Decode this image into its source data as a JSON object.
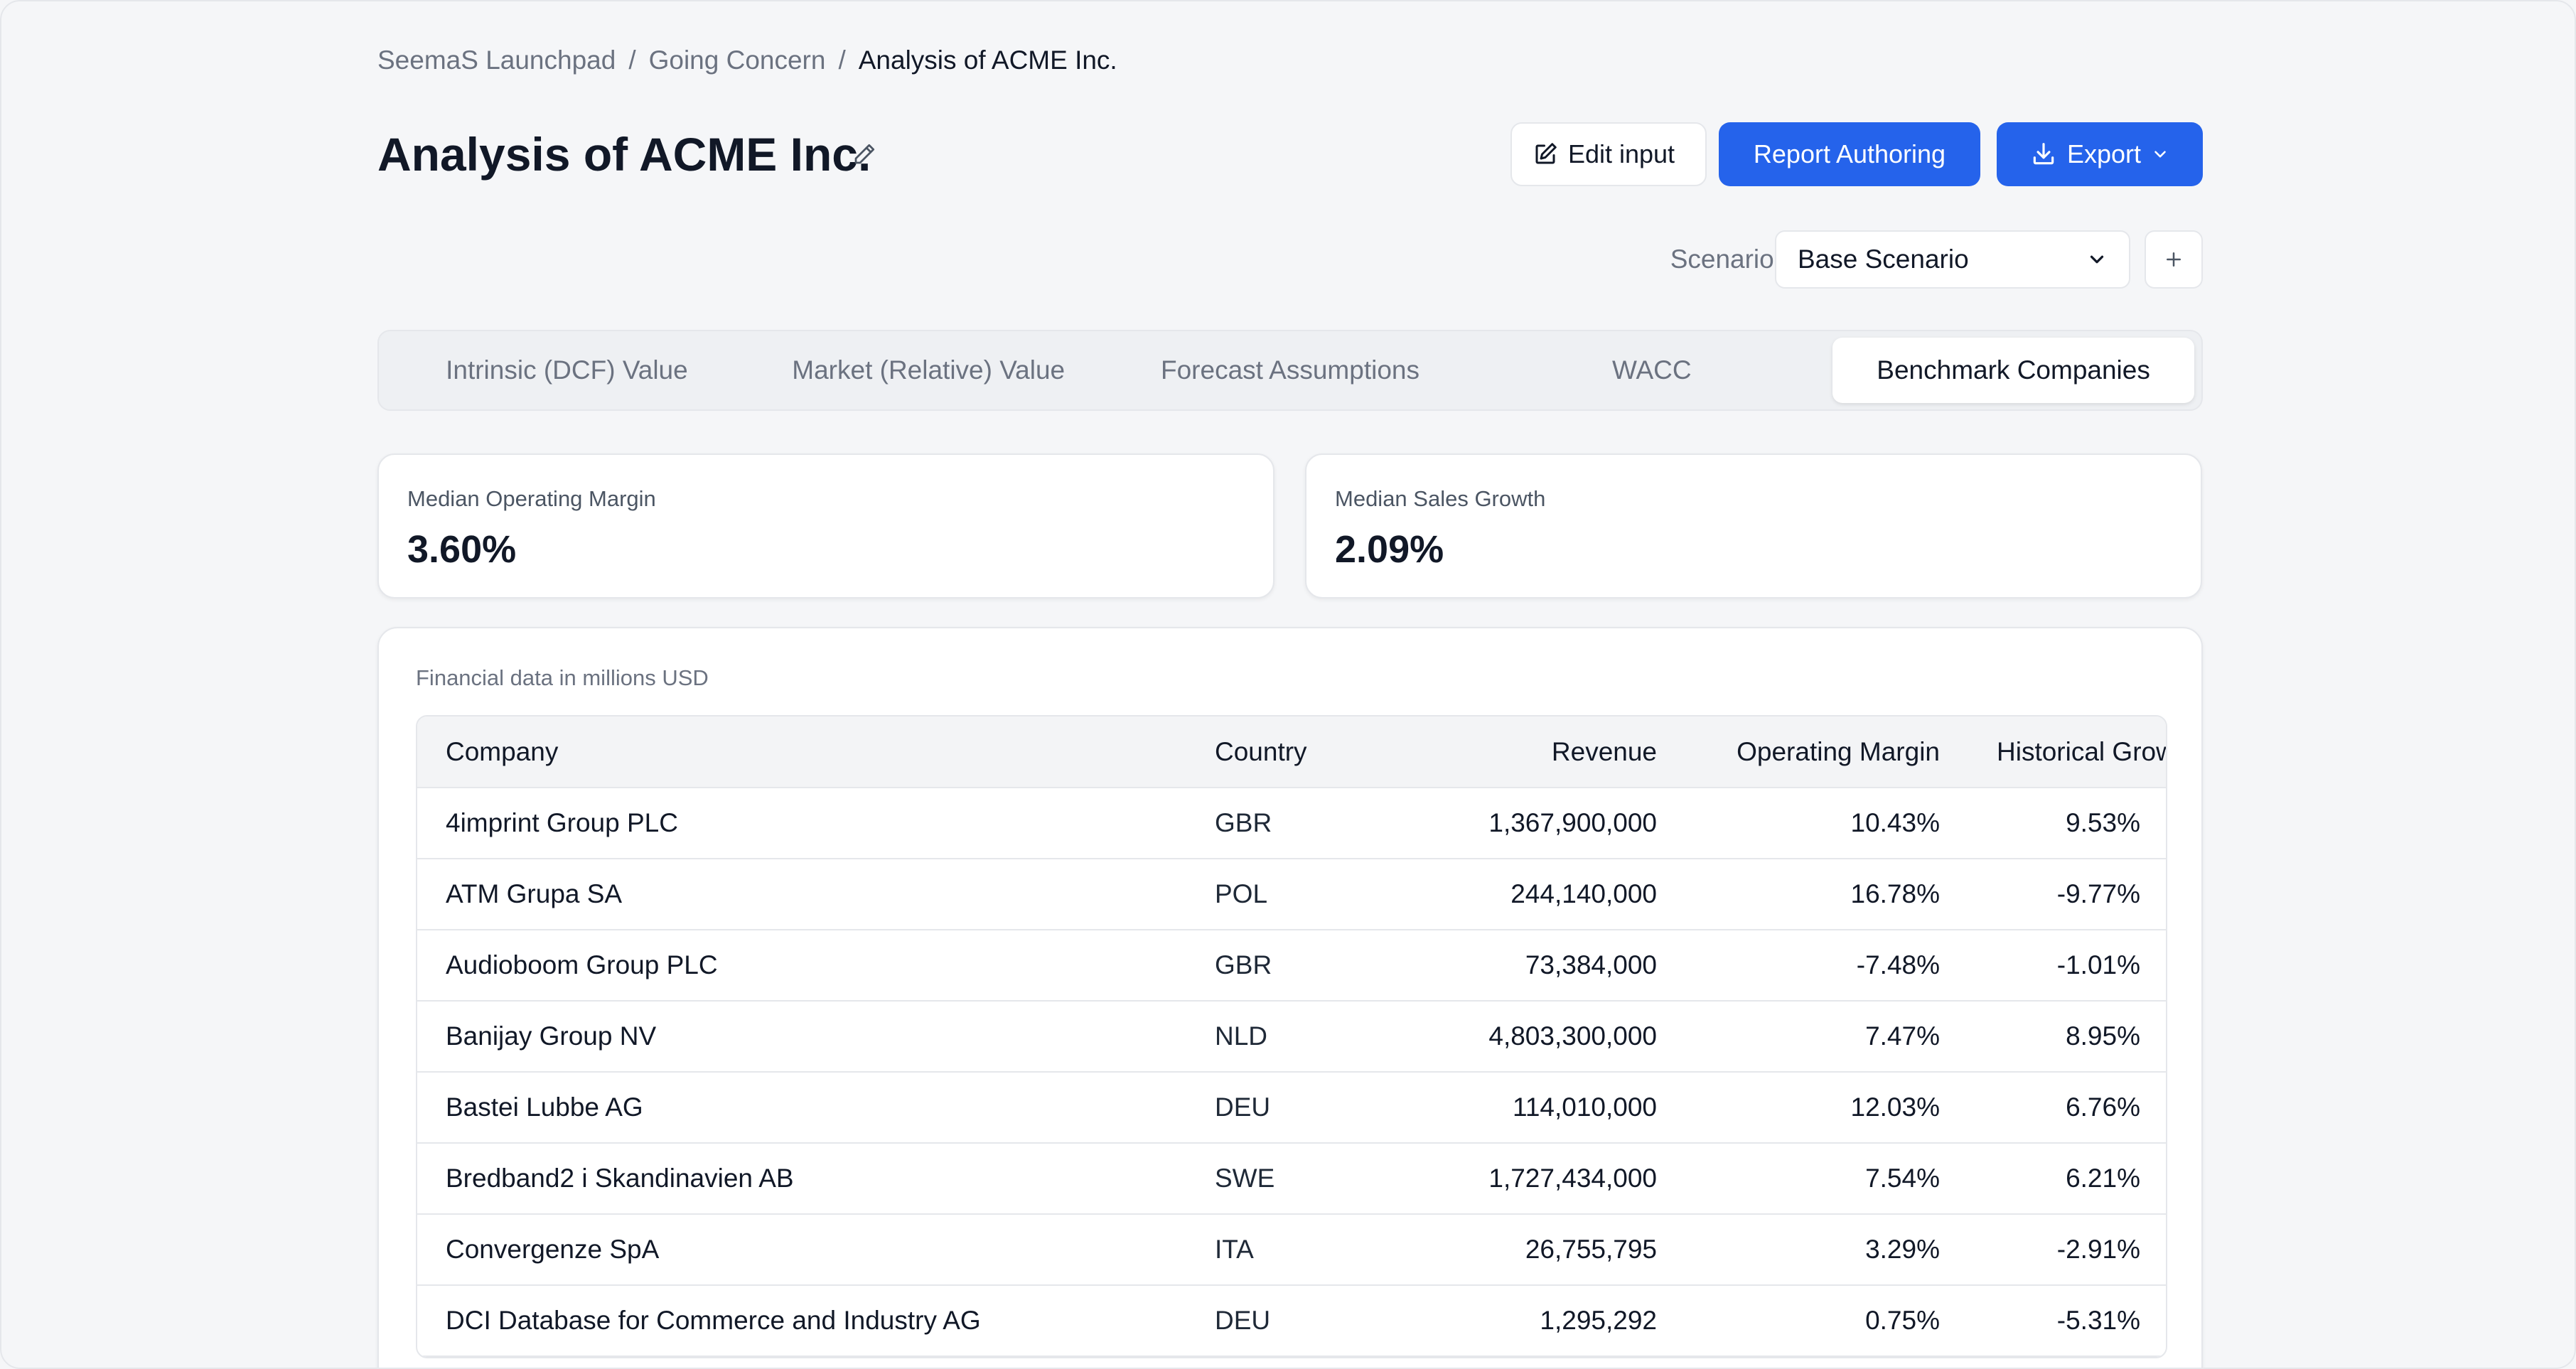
{
  "breadcrumb": {
    "items": [
      "SeemaS Launchpad",
      "Going Concern"
    ],
    "separator": "/",
    "current": "Analysis of ACME Inc."
  },
  "header": {
    "title": "Analysis of ACME Inc.",
    "edit_input_label": "Edit input",
    "report_authoring_label": "Report Authoring",
    "export_label": "Export"
  },
  "scenario": {
    "label": "Scenario:",
    "selected": "Base Scenario"
  },
  "tabs": [
    {
      "label": "Intrinsic (DCF) Value",
      "active": false
    },
    {
      "label": "Market (Relative) Value",
      "active": false
    },
    {
      "label": "Forecast Assumptions",
      "active": false
    },
    {
      "label": "WACC",
      "active": false
    },
    {
      "label": "Benchmark Companies",
      "active": true
    }
  ],
  "stats": {
    "median_operating_margin": {
      "label": "Median Operating Margin",
      "value": "3.60%"
    },
    "median_sales_growth": {
      "label": "Median Sales Growth",
      "value": "2.09%"
    }
  },
  "table": {
    "note": "Financial data in millions USD",
    "columns": [
      "Company",
      "Country",
      "Revenue",
      "Operating Margin",
      "Historical Growth"
    ],
    "rows": [
      {
        "company": "4imprint Group PLC",
        "country": "GBR",
        "revenue": "1,367,900,000",
        "margin": "10.43%",
        "growth": "9.53%"
      },
      {
        "company": "ATM Grupa SA",
        "country": "POL",
        "revenue": "244,140,000",
        "margin": "16.78%",
        "growth": "-9.77%"
      },
      {
        "company": "Audioboom Group PLC",
        "country": "GBR",
        "revenue": "73,384,000",
        "margin": "-7.48%",
        "growth": "-1.01%"
      },
      {
        "company": "Banijay Group NV",
        "country": "NLD",
        "revenue": "4,803,300,000",
        "margin": "7.47%",
        "growth": "8.95%"
      },
      {
        "company": "Bastei Lubbe AG",
        "country": "DEU",
        "revenue": "114,010,000",
        "margin": "12.03%",
        "growth": "6.76%"
      },
      {
        "company": "Bredband2 i Skandinavien AB",
        "country": "SWE",
        "revenue": "1,727,434,000",
        "margin": "7.54%",
        "growth": "6.21%"
      },
      {
        "company": "Convergenze SpA",
        "country": "ITA",
        "revenue": "26,755,795",
        "margin": "3.29%",
        "growth": "-2.91%"
      },
      {
        "company": "DCI Database for Commerce and Industry AG",
        "country": "DEU",
        "revenue": "1,295,292",
        "margin": "0.75%",
        "growth": "-5.31%"
      }
    ]
  },
  "colors": {
    "primary": "#2563eb",
    "background": "#f5f6f8",
    "border": "#e5e7eb",
    "muted_text": "#6b7280"
  },
  "icons": {
    "edit_title": "pencil-icon",
    "edit_input": "pencil-square-icon",
    "export": "download-icon",
    "export_menu": "chevron-down-icon",
    "scenario_select": "chevron-down-icon",
    "scenario_add": "plus-icon"
  }
}
